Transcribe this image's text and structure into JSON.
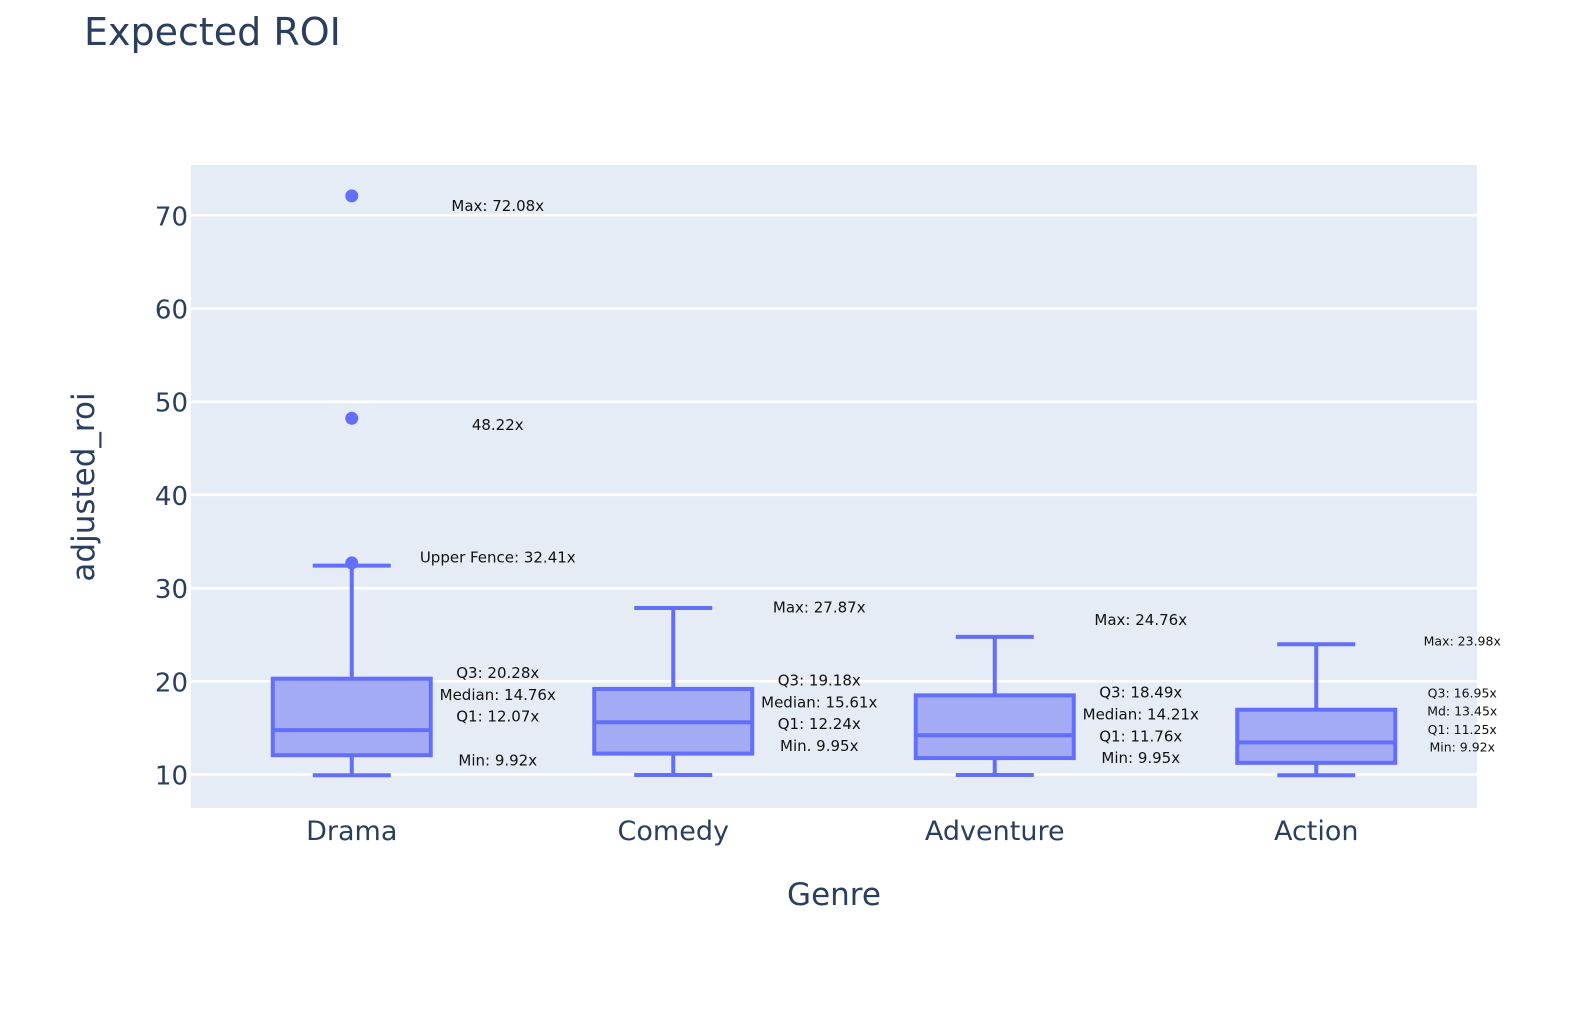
{
  "chart_data": {
    "type": "box",
    "title": "Expected ROI",
    "xlabel": "Genre",
    "ylabel": "adjusted_roi",
    "ylim": [
      6.5,
      75.5
    ],
    "yticks": [
      10,
      20,
      30,
      40,
      50,
      60,
      70
    ],
    "grid": true,
    "categories": [
      "Drama",
      "Comedy",
      "Adventure",
      "Action"
    ],
    "boxes": [
      {
        "category": "Drama",
        "min": 9.92,
        "q1": 12.07,
        "median": 14.76,
        "q3": 20.28,
        "upper_fence": 32.41,
        "outliers": [
          72.08,
          48.22,
          32.7
        ]
      },
      {
        "category": "Comedy",
        "min": 9.95,
        "q1": 12.24,
        "median": 15.61,
        "q3": 19.18,
        "upper_fence": 27.87,
        "outliers": []
      },
      {
        "category": "Adventure",
        "min": 9.95,
        "q1": 11.76,
        "median": 14.21,
        "q3": 18.49,
        "upper_fence": 24.76,
        "outliers": []
      },
      {
        "category": "Action",
        "min": 9.92,
        "q1": 11.25,
        "median": 13.45,
        "q3": 16.95,
        "upper_fence": 23.98,
        "outliers": []
      }
    ],
    "annotations": [
      {
        "category": "Drama",
        "y": 71,
        "text": "Max: 72.08x",
        "size": "normal"
      },
      {
        "category": "Drama",
        "y": 47.5,
        "text": "48.22x",
        "size": "normal"
      },
      {
        "category": "Drama",
        "y": 33.3,
        "text": "Upper Fence: 32.41x",
        "size": "normal"
      },
      {
        "category": "Drama",
        "y": 20.9,
        "text": "Q3: 20.28x",
        "size": "normal"
      },
      {
        "category": "Drama",
        "y": 18.55,
        "text": "Median: 14.76x",
        "size": "normal"
      },
      {
        "category": "Drama",
        "y": 16.2,
        "text": "Q1: 12.07x",
        "size": "normal"
      },
      {
        "category": "Drama",
        "y": 11.5,
        "text": "Min: 9.92x",
        "size": "normal"
      },
      {
        "category": "Comedy",
        "y": 27.9,
        "text": "Max: 27.87x",
        "size": "normal"
      },
      {
        "category": "Comedy",
        "y": 20.1,
        "text": "Q3: 19.18x",
        "size": "normal"
      },
      {
        "category": "Comedy",
        "y": 17.75,
        "text": "Median: 15.61x",
        "size": "normal"
      },
      {
        "category": "Comedy",
        "y": 15.4,
        "text": "Q1: 12.24x",
        "size": "normal"
      },
      {
        "category": "Comedy",
        "y": 13.05,
        "text": "Min. 9.95x",
        "size": "normal"
      },
      {
        "category": "Adventure",
        "y": 26.6,
        "text": "Max: 24.76x",
        "size": "normal"
      },
      {
        "category": "Adventure",
        "y": 18.8,
        "text": "Q3: 18.49x",
        "size": "normal"
      },
      {
        "category": "Adventure",
        "y": 16.45,
        "text": "Median: 14.21x",
        "size": "normal"
      },
      {
        "category": "Adventure",
        "y": 14.1,
        "text": "Q1: 11.76x",
        "size": "normal"
      },
      {
        "category": "Adventure",
        "y": 11.75,
        "text": "Min: 9.95x",
        "size": "normal"
      },
      {
        "category": "Action",
        "y": 24.4,
        "text": "Max: 23.98x",
        "size": "small"
      },
      {
        "category": "Action",
        "y": 18.8,
        "text": "Q3: 16.95x",
        "size": "small"
      },
      {
        "category": "Action",
        "y": 16.85,
        "text": "Md: 13.45x",
        "size": "small"
      },
      {
        "category": "Action",
        "y": 14.9,
        "text": "Q1: 11.25x",
        "size": "small"
      },
      {
        "category": "Action",
        "y": 13.0,
        "text": "Min: 9.92x",
        "size": "small"
      }
    ]
  },
  "colors": {
    "background": "#ffffff",
    "plot_background": "#e5ecf6",
    "grid": "#ffffff",
    "box_line": "#636efa",
    "box_fill": "#a3abf5",
    "text": "#2a3f5f",
    "annotation_text": "#111111"
  }
}
